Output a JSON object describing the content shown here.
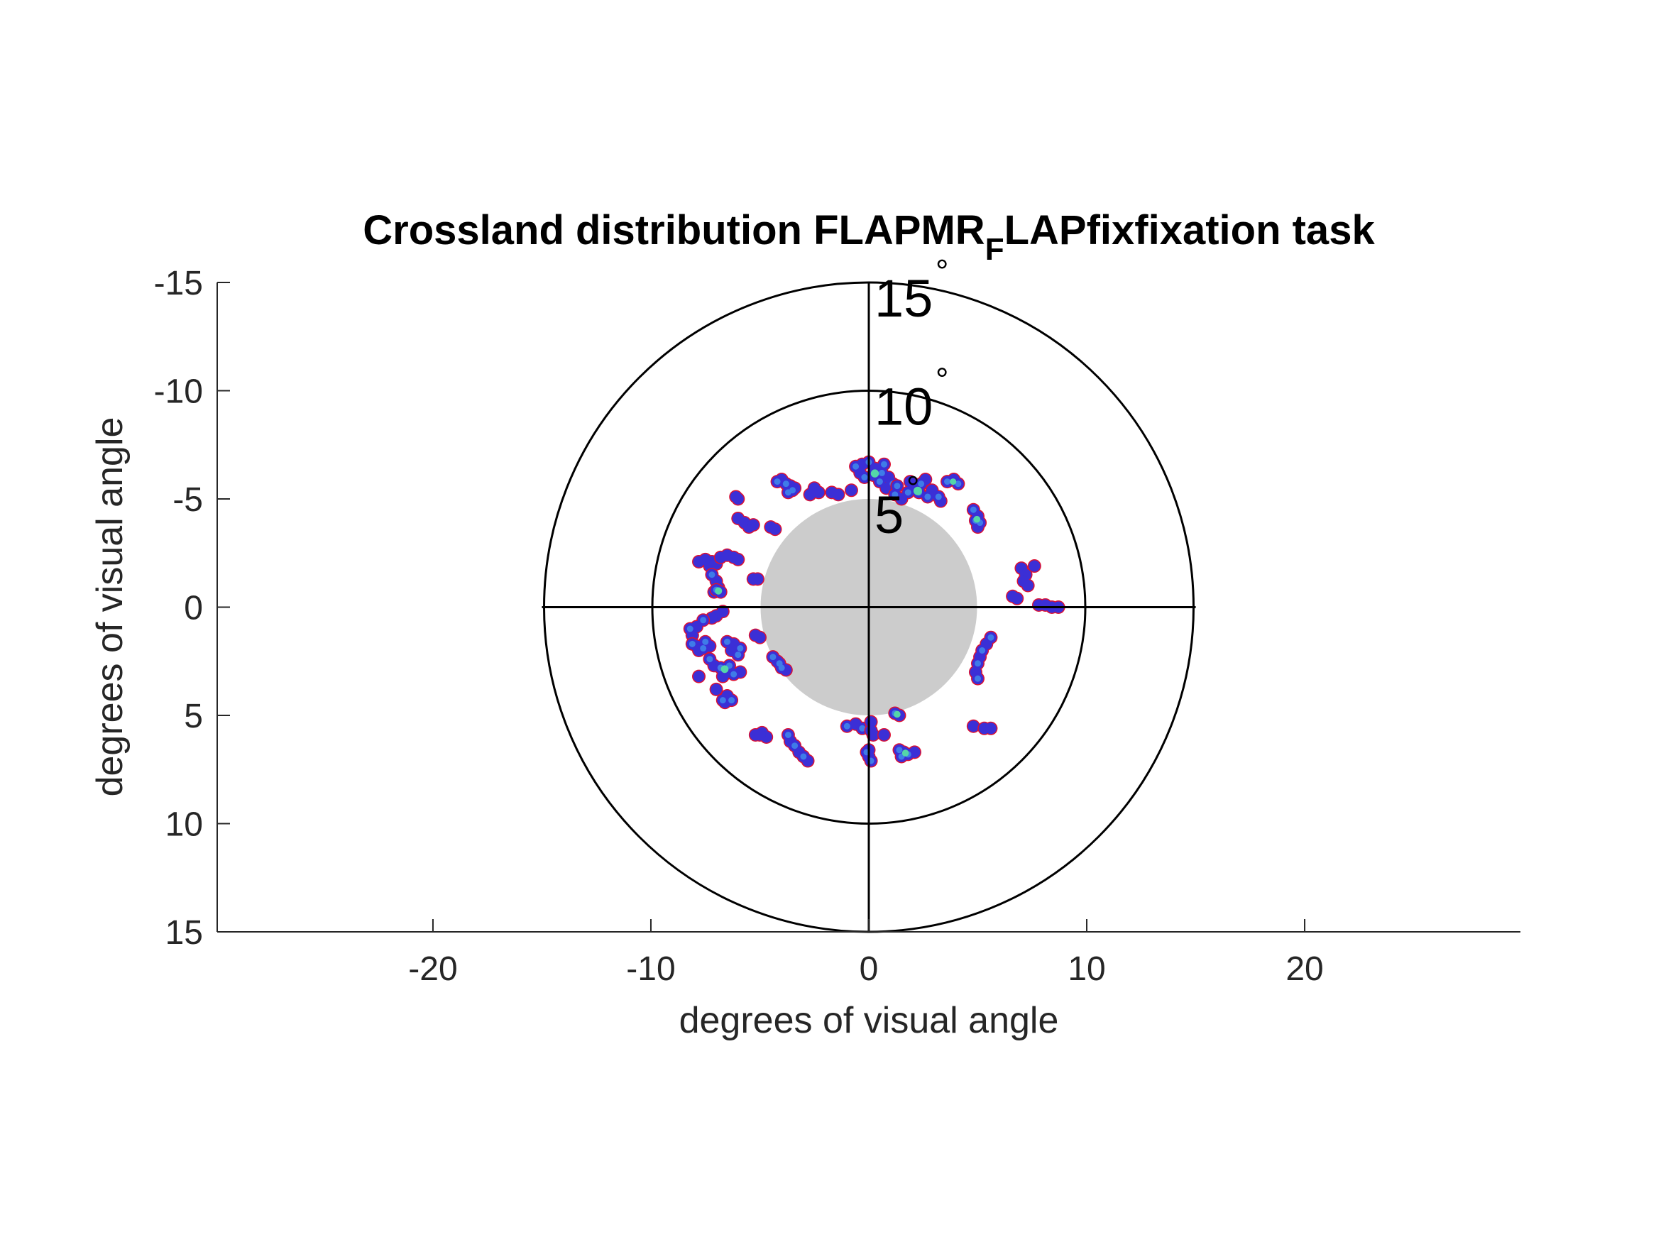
{
  "chart_data": {
    "type": "scatter",
    "title": "Crossland distribution FLAPMR",
    "title_subscript": "F",
    "title_suffix": "LAPfixfixation task",
    "xlabel": "degrees of visual angle",
    "ylabel": "degrees of visual angle",
    "xlim": [
      -29.9,
      29.9
    ],
    "ylim": [
      -15,
      15
    ],
    "y_reversed": true,
    "xticks": [
      -20,
      -10,
      0,
      10,
      20
    ],
    "yticks": [
      -15,
      -10,
      -5,
      0,
      5,
      10,
      15
    ],
    "grid": false,
    "rings": [
      {
        "radius": 5,
        "label": "5",
        "degree_mark": "°"
      },
      {
        "radius": 10,
        "label": "10",
        "degree_mark": "°"
      },
      {
        "radius": 15,
        "label": "15",
        "degree_mark": "°"
      }
    ],
    "scotoma": {
      "center": [
        0,
        0
      ],
      "radius": 5,
      "color": "#cccccc"
    },
    "density_colors": {
      "edge": "#dd1133",
      "low": "#3b2fd6",
      "mid": "#3f7be8",
      "high": "#55d6a8"
    },
    "clusters": [
      {
        "points": [
          [
            -4.2,
            -5.8
          ],
          [
            -4.0,
            -5.9
          ],
          [
            -3.8,
            -5.7
          ],
          [
            -3.6,
            -5.6
          ],
          [
            -3.5,
            -5.4
          ],
          [
            -3.4,
            -5.5
          ],
          [
            -3.7,
            -5.3
          ]
        ],
        "peak": 0.3
      },
      {
        "points": [
          [
            -6.0,
            -5.0
          ],
          [
            -6.1,
            -5.1
          ]
        ],
        "peak": 0.1
      },
      {
        "points": [
          [
            -2.5,
            -5.5
          ],
          [
            -2.7,
            -5.2
          ],
          [
            -2.3,
            -5.3
          ]
        ],
        "peak": 0.2
      },
      {
        "points": [
          [
            -1.7,
            -5.3
          ],
          [
            -1.4,
            -5.2
          ]
        ],
        "peak": 0.1
      },
      {
        "points": [
          [
            -0.8,
            -5.4
          ]
        ],
        "peak": 0.1
      },
      {
        "points": [
          [
            -0.6,
            -6.5
          ],
          [
            -0.3,
            -6.6
          ],
          [
            0.0,
            -6.7
          ],
          [
            0.3,
            -6.4
          ],
          [
            0.6,
            -6.2
          ],
          [
            0.9,
            -6.0
          ],
          [
            1.1,
            -5.7
          ],
          [
            0.8,
            -5.5
          ],
          [
            0.5,
            -5.8
          ],
          [
            0.2,
            -6.1
          ],
          [
            -0.2,
            -6.0
          ],
          [
            -0.4,
            -6.2
          ],
          [
            0.7,
            -6.6
          ]
        ],
        "peak": 0.9
      },
      {
        "points": [
          [
            1.2,
            -5.2
          ],
          [
            1.5,
            -5.0
          ],
          [
            1.8,
            -5.3
          ],
          [
            2.1,
            -5.5
          ],
          [
            2.4,
            -5.7
          ],
          [
            2.6,
            -5.9
          ],
          [
            2.3,
            -5.3
          ],
          [
            2.9,
            -5.4
          ],
          [
            3.2,
            -5.1
          ],
          [
            3.3,
            -4.9
          ],
          [
            2.7,
            -5.1
          ],
          [
            1.9,
            -5.8
          ],
          [
            1.3,
            -5.6
          ]
        ],
        "peak": 1.0
      },
      {
        "points": [
          [
            3.6,
            -5.8
          ],
          [
            3.9,
            -5.9
          ],
          [
            4.1,
            -5.7
          ]
        ],
        "peak": 0.5
      },
      {
        "points": [
          [
            -6.0,
            -4.1
          ],
          [
            -5.7,
            -3.9
          ],
          [
            -5.5,
            -3.7
          ],
          [
            -5.3,
            -3.8
          ]
        ],
        "peak": 0.2
      },
      {
        "points": [
          [
            -4.5,
            -3.7
          ],
          [
            -4.3,
            -3.6
          ]
        ],
        "peak": 0.1
      },
      {
        "points": [
          [
            4.8,
            -4.5
          ],
          [
            5.0,
            -4.2
          ],
          [
            5.1,
            -3.9
          ],
          [
            5.0,
            -3.7
          ],
          [
            4.9,
            -4.0
          ]
        ],
        "peak": 0.6
      },
      {
        "points": [
          [
            -7.8,
            -2.1
          ],
          [
            -7.5,
            -2.2
          ],
          [
            -7.2,
            -2.1
          ],
          [
            -7.0,
            -2.0
          ],
          [
            -7.3,
            -1.9
          ]
        ],
        "peak": 0.2
      },
      {
        "points": [
          [
            -6.8,
            -2.3
          ],
          [
            -6.5,
            -2.4
          ],
          [
            -6.2,
            -2.3
          ],
          [
            -6.0,
            -2.2
          ]
        ],
        "peak": 0.2
      },
      {
        "points": [
          [
            -7.2,
            -1.5
          ],
          [
            -7.0,
            -1.2
          ],
          [
            -6.9,
            -0.9
          ],
          [
            -7.1,
            -0.7
          ]
        ],
        "peak": 0.3
      },
      {
        "points": [
          [
            -7.0,
            -0.8
          ],
          [
            -6.8,
            -0.7
          ]
        ],
        "peak": 0.7
      },
      {
        "points": [
          [
            -5.3,
            -1.3
          ],
          [
            -5.1,
            -1.3
          ]
        ],
        "peak": 0.2
      },
      {
        "points": [
          [
            7.0,
            -1.8
          ],
          [
            7.2,
            -1.5
          ],
          [
            7.1,
            -1.2
          ],
          [
            7.3,
            -1.0
          ]
        ],
        "peak": 0.2
      },
      {
        "points": [
          [
            7.6,
            -1.9
          ]
        ],
        "peak": 0.1
      },
      {
        "points": [
          [
            6.6,
            -0.5
          ],
          [
            6.8,
            -0.4
          ]
        ],
        "peak": 0.1
      },
      {
        "points": [
          [
            7.8,
            -0.1
          ],
          [
            8.1,
            -0.1
          ],
          [
            8.4,
            0.0
          ],
          [
            8.7,
            0.0
          ]
        ],
        "peak": 0.2
      },
      {
        "points": [
          [
            -6.7,
            0.2
          ],
          [
            -7.0,
            0.4
          ],
          [
            -7.2,
            0.5
          ]
        ],
        "peak": 0.2
      },
      {
        "points": [
          [
            -7.6,
            0.6
          ],
          [
            -7.9,
            0.9
          ],
          [
            -8.2,
            1.0
          ],
          [
            -8.1,
            1.3
          ]
        ],
        "peak": 0.3
      },
      {
        "points": [
          [
            -8.1,
            1.7
          ],
          [
            -7.9,
            1.8
          ],
          [
            -7.6,
            1.9
          ],
          [
            -7.3,
            1.8
          ],
          [
            -7.5,
            1.6
          ],
          [
            -7.8,
            2.0
          ]
        ],
        "peak": 0.4
      },
      {
        "points": [
          [
            -6.5,
            1.6
          ],
          [
            -6.2,
            1.7
          ],
          [
            -5.9,
            1.9
          ],
          [
            -6.3,
            2.0
          ],
          [
            -6.0,
            2.2
          ]
        ],
        "peak": 0.4
      },
      {
        "points": [
          [
            -5.2,
            1.3
          ],
          [
            -5.0,
            1.4
          ]
        ],
        "peak": 0.1
      },
      {
        "points": [
          [
            -4.4,
            2.3
          ],
          [
            -4.2,
            2.5
          ],
          [
            -4.0,
            2.8
          ],
          [
            -3.8,
            2.9
          ],
          [
            -4.1,
            2.6
          ]
        ],
        "peak": 0.3
      },
      {
        "points": [
          [
            -7.3,
            2.4
          ],
          [
            -7.1,
            2.7
          ],
          [
            -6.8,
            2.8
          ],
          [
            -6.5,
            3.0
          ],
          [
            -6.2,
            3.1
          ],
          [
            -5.9,
            3.0
          ],
          [
            -6.4,
            2.7
          ],
          [
            -6.7,
            3.2
          ]
        ],
        "peak": 0.8
      },
      {
        "points": [
          [
            -7.8,
            3.2
          ]
        ],
        "peak": 0.1
      },
      {
        "points": [
          [
            -6.7,
            4.3
          ],
          [
            -6.5,
            4.1
          ],
          [
            -6.3,
            4.3
          ],
          [
            -6.6,
            4.4
          ]
        ],
        "peak": 0.4
      },
      {
        "points": [
          [
            -7.0,
            3.8
          ]
        ],
        "peak": 0.1
      },
      {
        "points": [
          [
            5.6,
            1.4
          ],
          [
            5.4,
            1.7
          ],
          [
            5.2,
            2.0
          ],
          [
            5.1,
            2.3
          ],
          [
            5.0,
            2.6
          ],
          [
            4.9,
            3.0
          ],
          [
            5.0,
            3.3
          ]
        ],
        "peak": 0.3
      },
      {
        "points": [
          [
            -5.2,
            5.9
          ],
          [
            -4.9,
            5.8
          ],
          [
            -4.7,
            6.0
          ],
          [
            -5.0,
            5.9
          ]
        ],
        "peak": 0.2
      },
      {
        "points": [
          [
            -3.7,
            5.9
          ],
          [
            -3.6,
            6.2
          ],
          [
            -3.4,
            6.4
          ],
          [
            -3.2,
            6.7
          ],
          [
            -3.0,
            6.9
          ],
          [
            -2.8,
            7.1
          ]
        ],
        "peak": 0.3
      },
      {
        "points": [
          [
            -1.0,
            5.5
          ],
          [
            -0.6,
            5.4
          ],
          [
            -0.3,
            5.6
          ]
        ],
        "peak": 0.3
      },
      {
        "points": [
          [
            0.1,
            5.3
          ],
          [
            0.1,
            5.7
          ],
          [
            0.2,
            5.9
          ]
        ],
        "peak": 0.2
      },
      {
        "points": [
          [
            1.2,
            4.9
          ],
          [
            1.4,
            5.0
          ]
        ],
        "peak": 0.6
      },
      {
        "points": [
          [
            0.7,
            5.9
          ]
        ],
        "peak": 0.1
      },
      {
        "points": [
          [
            -0.1,
            6.7
          ],
          [
            0.0,
            6.9
          ],
          [
            0.1,
            7.1
          ],
          [
            0.0,
            6.6
          ]
        ],
        "peak": 0.3
      },
      {
        "points": [
          [
            1.4,
            6.6
          ],
          [
            1.6,
            6.7
          ],
          [
            1.8,
            6.8
          ],
          [
            2.1,
            6.7
          ],
          [
            1.5,
            6.9
          ]
        ],
        "peak": 0.6
      },
      {
        "points": [
          [
            4.8,
            5.5
          ]
        ],
        "peak": 0.1
      },
      {
        "points": [
          [
            5.3,
            5.6
          ],
          [
            5.6,
            5.6
          ]
        ],
        "peak": 0.2
      }
    ]
  }
}
